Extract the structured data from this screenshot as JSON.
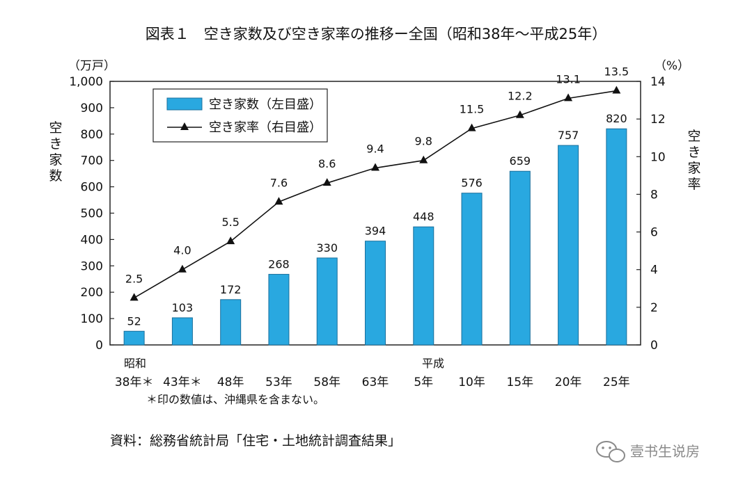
{
  "title": "図表１　空き家数及び空き家率の推移ー全国（昭和38年〜平成25年）",
  "chart_data": {
    "type": "bar+line",
    "categories": [
      "38年＊",
      "43年＊",
      "48年",
      "53年",
      "58年",
      "63年",
      "5年",
      "10年",
      "15年",
      "20年",
      "25年"
    ],
    "era_labels": {
      "start": "昭和",
      "heisei": "平成"
    },
    "series": [
      {
        "name": "空き家数（左目盛）",
        "type": "bar",
        "axis": "left",
        "values": [
          52,
          103,
          172,
          268,
          330,
          394,
          448,
          576,
          659,
          757,
          820
        ],
        "labels": [
          "52",
          "103",
          "172",
          "268",
          "330",
          "394",
          "448",
          "576",
          "659",
          "757",
          "820"
        ]
      },
      {
        "name": "空き家率（右目盛）",
        "type": "line",
        "axis": "right",
        "values": [
          2.5,
          4.0,
          5.5,
          7.6,
          8.6,
          9.4,
          9.8,
          11.5,
          12.2,
          13.1,
          13.5
        ],
        "labels": [
          "2.5",
          "4.0",
          "5.5",
          "7.6",
          "8.6",
          "9.4",
          "9.8",
          "11.5",
          "12.2",
          "13.1",
          "13.5"
        ]
      }
    ],
    "left_axis": {
      "label": "空き家数",
      "unit": "（万戸）",
      "range": [
        0,
        1000
      ],
      "ticks": [
        0,
        100,
        200,
        300,
        400,
        500,
        600,
        700,
        800,
        900,
        1000
      ],
      "tick_labels": [
        "0",
        "100",
        "200",
        "300",
        "400",
        "500",
        "600",
        "700",
        "800",
        "900",
        "1,000"
      ]
    },
    "right_axis": {
      "label": "空き家率",
      "unit": "（%）",
      "range": [
        0,
        14
      ],
      "ticks": [
        0,
        2,
        4,
        6,
        8,
        10,
        12,
        14
      ],
      "tick_labels": [
        "0",
        "2",
        "4",
        "6",
        "8",
        "10",
        "12",
        "14"
      ]
    },
    "legend_position": "top-left",
    "grid": false
  },
  "note": "＊印の数値は、沖縄県を含まない。",
  "source": "資料：総務省統計局「住宅・土地統計調査結果」",
  "watermark": "壹书生说房",
  "colors": {
    "bar": "#29a8e0",
    "bar_edge": "#1a6f9c",
    "line": "#111111"
  },
  "icons": {
    "watermark": "wechat-icon"
  }
}
